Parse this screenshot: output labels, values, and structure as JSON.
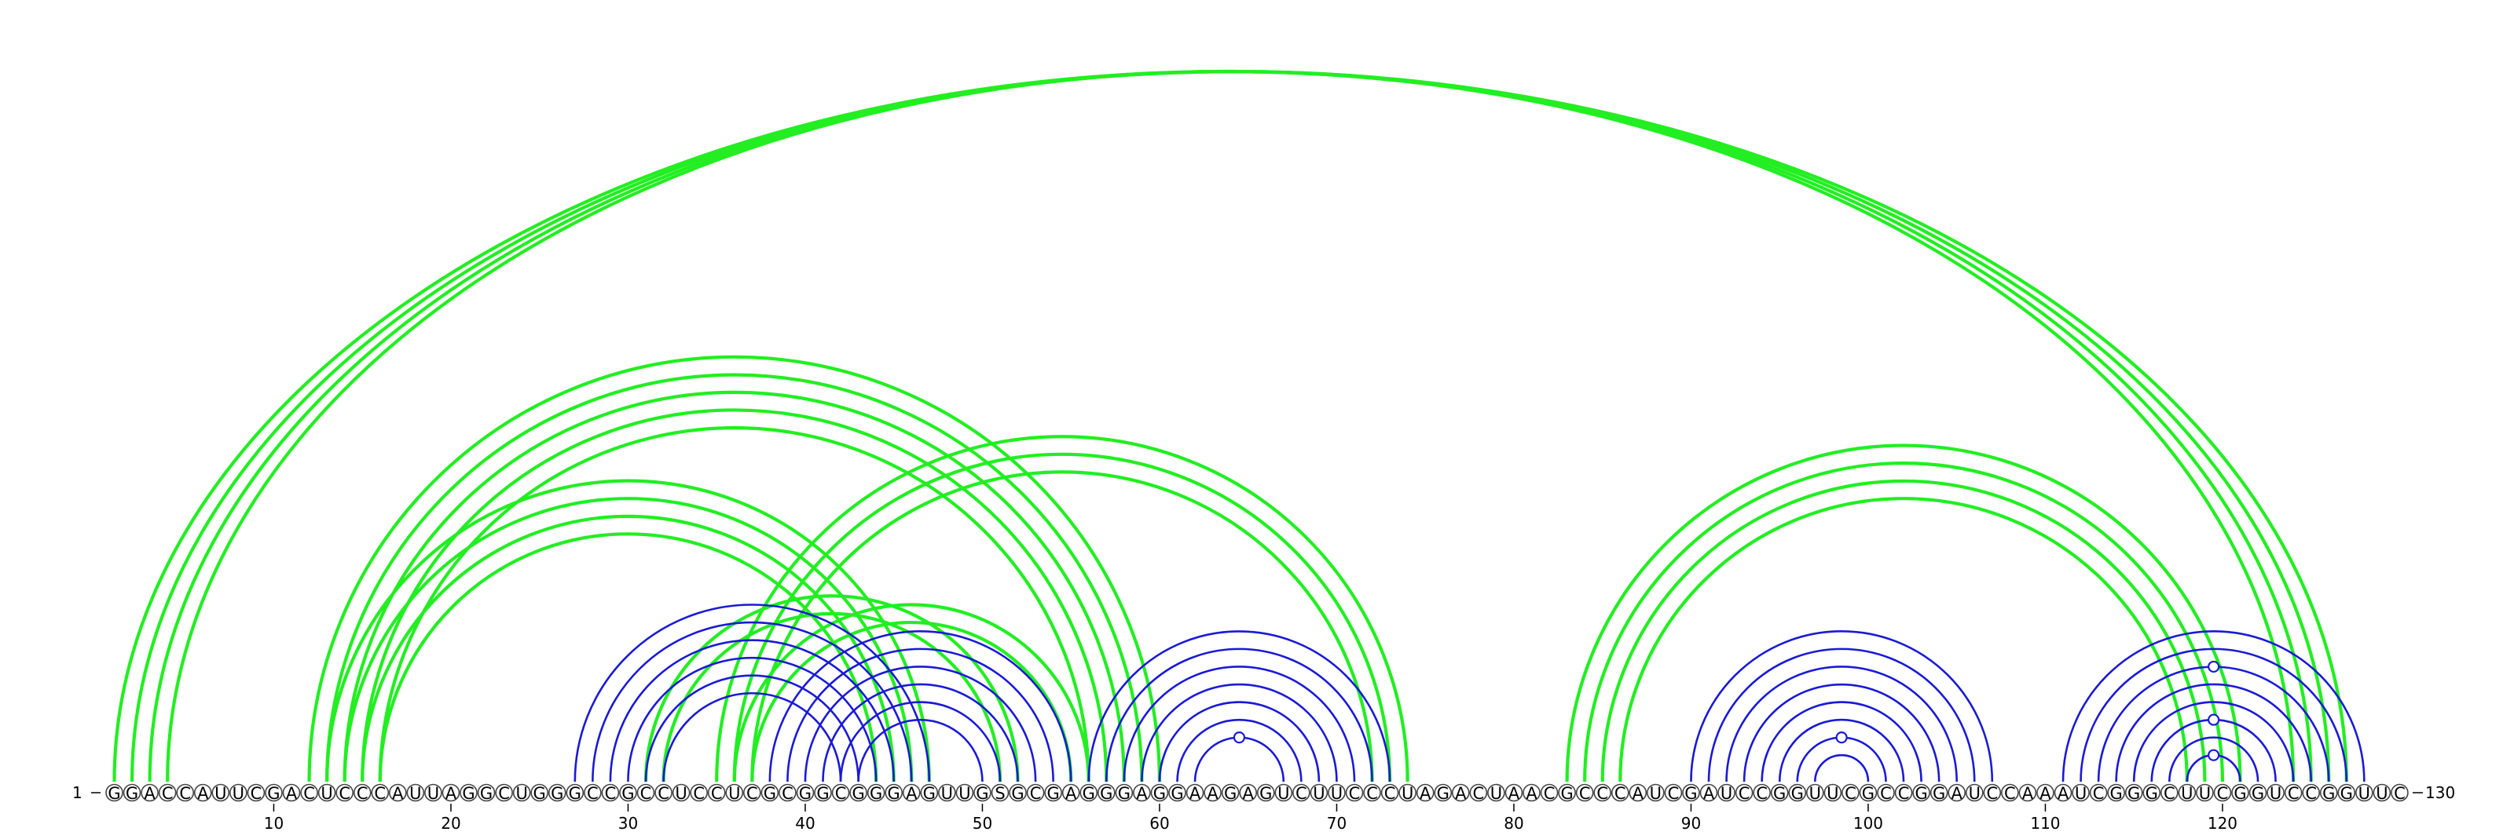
{
  "diagram": {
    "type": "rna-arc-diagram",
    "sequence": "GGACCAUUCGACUCCCAUUAGGCUGGGCCGCCUCCUCGCGGCGGGAGUUGSGCGAGGGAGGAAGAGUCUUCCCUAGACUAACGCCCAUCGAUCCGGUUCGCCGGAUCCAAAUCGGGCUUCGGUCCGGUUC",
    "start_label": "1",
    "end_label": "130",
    "ticks": [
      10,
      20,
      30,
      40,
      50,
      60,
      70,
      80,
      90,
      100,
      110,
      120
    ],
    "colors": {
      "green": "#22ee22",
      "blue": "#1a1ad6",
      "circle_stroke": "#444444"
    },
    "green_helices": [
      {
        "outer_i": 1,
        "outer_j": 127,
        "length": 4
      },
      {
        "outer_i": 12,
        "outer_j": 60,
        "length": 5
      },
      {
        "outer_i": 13,
        "outer_j": 47,
        "length": 4
      },
      {
        "outer_i": 35,
        "outer_j": 74,
        "length": 3
      },
      {
        "outer_i": 36,
        "outer_j": 56,
        "length": 2
      },
      {
        "outer_i": 31,
        "outer_j": 52,
        "length": 2
      },
      {
        "outer_i": 83,
        "outer_j": 121,
        "length": 4
      }
    ],
    "blue_helices": [
      {
        "outer_i": 27,
        "outer_j": 47,
        "length": 6
      },
      {
        "outer_i": 38,
        "outer_j": 55,
        "length": 6
      },
      {
        "outer_i": 56,
        "outer_j": 73,
        "length": 7
      },
      {
        "outer_i": 90,
        "outer_j": 107,
        "length": 8
      },
      {
        "outer_i": 111,
        "outer_j": 128,
        "length": 8
      }
    ],
    "gu_markers": [
      {
        "i": 62,
        "j": 67
      },
      {
        "i": 96,
        "j": 101
      },
      {
        "i": 113,
        "j": 126
      },
      {
        "i": 116,
        "j": 123
      },
      {
        "i": 118,
        "j": 121
      }
    ]
  }
}
